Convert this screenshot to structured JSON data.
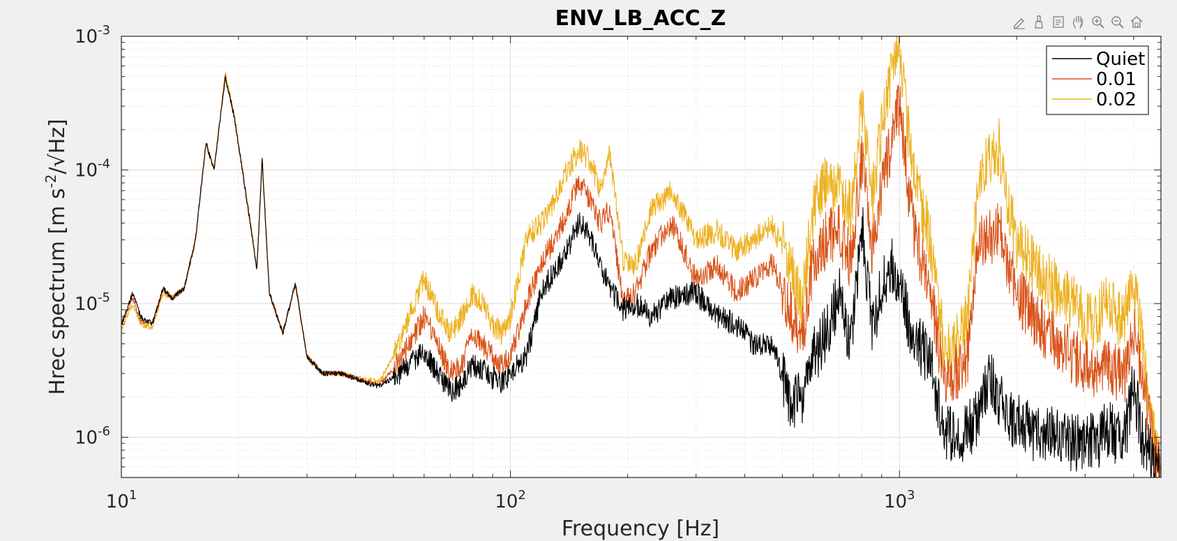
{
  "figure": {
    "background": "#f0f0f0",
    "axes_background": "#ffffff",
    "toolbar": [
      {
        "name": "edit-plot-icon"
      },
      {
        "name": "brush-icon"
      },
      {
        "name": "data-tips-icon"
      },
      {
        "name": "pan-icon"
      },
      {
        "name": "zoom-in-icon"
      },
      {
        "name": "zoom-out-icon"
      },
      {
        "name": "home-icon"
      }
    ]
  },
  "chart_data": {
    "type": "line",
    "title": "ENV_LB_ACC_Z",
    "xlabel": "Frequency [Hz]",
    "ylabel": "Hrec spectrum [m s^-2/√Hz]",
    "xscale": "log",
    "yscale": "log",
    "xlim": [
      10,
      4700
    ],
    "ylim": [
      5e-07,
      0.001
    ],
    "grid": true,
    "minor_grid": true,
    "legend_position": "top-right",
    "x_ticks": [
      {
        "value": 10,
        "label": "10",
        "exponent": "1"
      },
      {
        "value": 100,
        "label": "10",
        "exponent": "2"
      },
      {
        "value": 1000,
        "label": "10",
        "exponent": "3"
      }
    ],
    "y_ticks": [
      {
        "value": 1e-06,
        "label": "10",
        "exponent": "-6"
      },
      {
        "value": 1e-05,
        "label": "10",
        "exponent": "-5"
      },
      {
        "value": 0.0001,
        "label": "10",
        "exponent": "-4"
      },
      {
        "value": 0.001,
        "label": "10",
        "exponent": "-3"
      }
    ],
    "series": [
      {
        "name": "Quiet",
        "color": "#000000",
        "x": [
          10,
          10.7,
          11.2,
          12,
          12.8,
          13.5,
          14.5,
          15.5,
          16.5,
          17.3,
          18.5,
          19.5,
          21,
          22.3,
          23,
          24,
          26,
          28,
          30,
          33,
          37,
          42,
          46,
          50,
          55,
          60,
          65,
          70,
          75,
          80,
          85,
          90,
          95,
          100,
          110,
          120,
          130,
          140,
          150,
          160,
          170,
          180,
          195,
          210,
          230,
          260,
          300,
          340,
          380,
          420,
          470,
          520,
          560,
          600,
          650,
          700,
          750,
          800,
          850,
          900,
          950,
          1000,
          1050,
          1100,
          1200,
          1300,
          1400,
          1500,
          1600,
          1700,
          1800,
          1900,
          2000,
          2200,
          2400,
          2600,
          2800,
          3000,
          3200,
          3400,
          3600,
          3800,
          4000,
          4200,
          4500,
          4700
        ],
        "values": [
          7e-06,
          1.2e-05,
          8e-06,
          7e-06,
          1.3e-05,
          1.1e-05,
          1.3e-05,
          3e-05,
          0.00016,
          0.0001,
          0.0005,
          0.00025,
          6e-05,
          1.8e-05,
          0.00012,
          1.2e-05,
          6e-06,
          1.4e-05,
          4e-06,
          3e-06,
          3e-06,
          2.6e-06,
          2.4e-06,
          2.8e-06,
          3.5e-06,
          4.5e-06,
          3e-06,
          2.2e-06,
          2.5e-06,
          3.5e-06,
          3.2e-06,
          2.8e-06,
          2.6e-06,
          3e-06,
          4e-06,
          1.2e-05,
          1.8e-05,
          2.5e-05,
          4e-05,
          3.2e-05,
          2e-05,
          1.3e-05,
          9e-06,
          1e-05,
          8e-06,
          1.1e-05,
          1.2e-05,
          8e-06,
          7e-06,
          5e-06,
          5e-06,
          2e-06,
          1.8e-06,
          4e-06,
          6e-06,
          1.2e-05,
          5e-06,
          4e-05,
          6e-06,
          1.4e-05,
          2e-05,
          1.5e-05,
          8e-06,
          5e-06,
          4e-06,
          1.1e-06,
          1e-06,
          1.1e-06,
          1.5e-06,
          3e-06,
          2e-06,
          1.4e-06,
          1.3e-06,
          1.1e-06,
          1.1e-06,
          1e-06,
          9e-07,
          9.5e-07,
          9e-07,
          1.2e-06,
          1e-06,
          1e-06,
          2.5e-06,
          1e-06,
          6e-07,
          5e-07
        ]
      },
      {
        "name": "0.01",
        "color": "#d95319",
        "x": [
          10,
          10.7,
          11.2,
          12,
          12.8,
          13.5,
          14.5,
          15.5,
          16.5,
          17.3,
          18.5,
          19.5,
          21,
          22.3,
          23,
          24,
          26,
          28,
          30,
          33,
          37,
          42,
          46,
          50,
          55,
          60,
          65,
          70,
          75,
          80,
          85,
          90,
          95,
          100,
          110,
          120,
          130,
          140,
          150,
          160,
          170,
          180,
          195,
          210,
          230,
          260,
          300,
          340,
          380,
          420,
          470,
          520,
          560,
          600,
          650,
          700,
          750,
          800,
          850,
          900,
          950,
          1000,
          1050,
          1100,
          1200,
          1300,
          1400,
          1500,
          1600,
          1700,
          1800,
          1900,
          2000,
          2200,
          2400,
          2600,
          2800,
          3000,
          3200,
          3400,
          3600,
          3800,
          4000,
          4200,
          4500,
          4700
        ],
        "values": [
          7e-06,
          1.1e-05,
          7.5e-06,
          7e-06,
          1.3e-05,
          1.1e-05,
          1.3e-05,
          3e-05,
          0.00016,
          0.0001,
          0.0005,
          0.00025,
          6e-05,
          1.8e-05,
          0.00012,
          1.2e-05,
          6e-06,
          1.4e-05,
          4e-06,
          3e-06,
          3e-06,
          2.6e-06,
          2.5e-06,
          3.2e-06,
          5e-06,
          8e-06,
          5e-06,
          3e-06,
          3.5e-06,
          6e-06,
          5e-06,
          4e-06,
          3.5e-06,
          4e-06,
          1e-05,
          2e-05,
          3e-05,
          5e-05,
          8e-05,
          6e-05,
          4e-05,
          5e-05,
          1e-05,
          1.2e-05,
          2.5e-05,
          4e-05,
          1.5e-05,
          2e-05,
          1.2e-05,
          1.5e-05,
          2e-05,
          1e-05,
          5e-06,
          2e-05,
          3e-05,
          3.5e-05,
          2e-05,
          0.00012,
          2.5e-05,
          8e-05,
          0.00015,
          0.0003,
          8e-05,
          3e-05,
          1.2e-05,
          3e-06,
          3e-06,
          4e-06,
          3e-05,
          3e-05,
          4e-05,
          2e-05,
          1.2e-05,
          8e-06,
          6e-06,
          5e-06,
          4e-06,
          3.5e-06,
          3e-06,
          4e-06,
          3e-06,
          3e-06,
          6e-06,
          3e-06,
          8e-07,
          5e-07
        ]
      },
      {
        "name": "0.02",
        "color": "#edb120",
        "x": [
          10,
          10.7,
          11.2,
          12,
          12.8,
          13.5,
          14.5,
          15.5,
          16.5,
          17.3,
          18.5,
          19.5,
          21,
          22.3,
          23,
          24,
          26,
          28,
          30,
          33,
          37,
          42,
          46,
          50,
          55,
          60,
          65,
          70,
          75,
          80,
          85,
          90,
          95,
          100,
          110,
          120,
          130,
          140,
          150,
          160,
          170,
          180,
          195,
          210,
          230,
          260,
          300,
          340,
          380,
          420,
          470,
          520,
          560,
          600,
          650,
          700,
          750,
          800,
          850,
          900,
          950,
          1000,
          1050,
          1100,
          1200,
          1300,
          1400,
          1500,
          1600,
          1700,
          1800,
          1900,
          2000,
          2200,
          2400,
          2600,
          2800,
          3000,
          3200,
          3400,
          3600,
          3800,
          4000,
          4200,
          4500,
          4700
        ],
        "values": [
          6.5e-06,
          1e-05,
          7e-06,
          6.5e-06,
          1.2e-05,
          1.1e-05,
          1.3e-05,
          3e-05,
          0.00016,
          0.0001,
          0.00053,
          0.00026,
          6e-05,
          1.8e-05,
          0.00013,
          1.2e-05,
          6e-06,
          1.4e-05,
          4e-06,
          3e-06,
          3e-06,
          2.7e-06,
          2.6e-06,
          4e-06,
          8e-06,
          1.5e-05,
          9e-06,
          6e-06,
          8e-06,
          1.2e-05,
          1e-05,
          7e-06,
          6e-06,
          8e-06,
          3e-05,
          4e-05,
          6e-05,
          0.0001,
          0.00014,
          0.00012,
          7e-05,
          0.00013,
          2e-05,
          2e-05,
          5e-05,
          7e-05,
          3e-05,
          3.5e-05,
          2.5e-05,
          3e-05,
          4e-05,
          2e-05,
          1e-05,
          5e-05,
          8e-05,
          7e-05,
          5e-05,
          0.0003,
          6e-05,
          0.0002,
          0.0005,
          0.0009,
          0.0002,
          8e-05,
          3e-05,
          5e-06,
          5e-06,
          8e-06,
          8e-05,
          0.00012,
          0.00015,
          6e-05,
          3e-05,
          2e-05,
          1.5e-05,
          1.2e-05,
          1e-05,
          8e-06,
          7e-06,
          1.2e-05,
          8e-06,
          8e-06,
          1.3e-05,
          6e-06,
          1e-06,
          5e-07
        ]
      }
    ]
  }
}
